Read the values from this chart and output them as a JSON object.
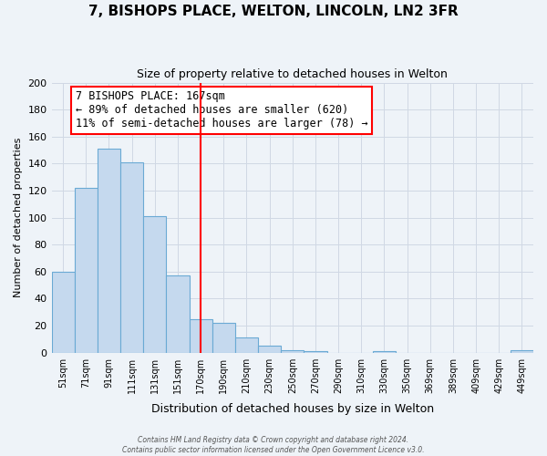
{
  "title": "7, BISHOPS PLACE, WELTON, LINCOLN, LN2 3FR",
  "subtitle": "Size of property relative to detached houses in Welton",
  "xlabel": "Distribution of detached houses by size in Welton",
  "ylabel": "Number of detached properties",
  "bin_labels": [
    "51sqm",
    "71sqm",
    "91sqm",
    "111sqm",
    "131sqm",
    "151sqm",
    "170sqm",
    "190sqm",
    "210sqm",
    "230sqm",
    "250sqm",
    "270sqm",
    "290sqm",
    "310sqm",
    "330sqm",
    "350sqm",
    "369sqm",
    "389sqm",
    "409sqm",
    "429sqm",
    "449sqm"
  ],
  "bar_heights": [
    60,
    122,
    151,
    141,
    101,
    57,
    25,
    22,
    11,
    5,
    2,
    1,
    0,
    0,
    1,
    0,
    0,
    0,
    0,
    0,
    2
  ],
  "bar_color": "#c5d9ee",
  "bar_edgecolor": "#6aaad4",
  "vline_x_idx": 6,
  "vline_color": "red",
  "ylim": [
    0,
    200
  ],
  "yticks": [
    0,
    20,
    40,
    60,
    80,
    100,
    120,
    140,
    160,
    180,
    200
  ],
  "annotation_title": "7 BISHOPS PLACE: 167sqm",
  "annotation_line1": "← 89% of detached houses are smaller (620)",
  "annotation_line2": "11% of semi-detached houses are larger (78) →",
  "annotation_box_color": "white",
  "annotation_border_color": "red",
  "grid_color": "#d0d8e4",
  "background_color": "#eef3f8",
  "footer1": "Contains HM Land Registry data © Crown copyright and database right 2024.",
  "footer2": "Contains public sector information licensed under the Open Government Licence v3.0."
}
